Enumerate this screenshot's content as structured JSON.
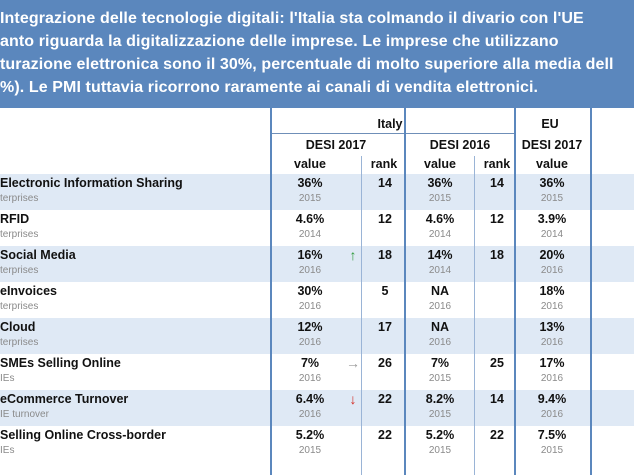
{
  "banner": {
    "lines": [
      "Integrazione delle tecnologie digitali: l'Italia sta colmando il divario con l'UE",
      "anto riguarda la digitalizzazione delle imprese. Le imprese che utilizzano",
      "turazione elettronica sono il 30%, percentuale di molto superiore alla media dell",
      "%). Le PMI tuttavia ricorrono raramente ai canali di vendita elettronici."
    ]
  },
  "table": {
    "group_italy": "Italy",
    "group_eu": "EU",
    "desi2017": "DESI 2017",
    "desi2016": "DESI 2016",
    "eu_desi2017": "DESI 2017",
    "value": "value",
    "rank": "rank",
    "rows": [
      {
        "name": "Electronic Information Sharing",
        "sub": "terprises",
        "v17": "36%",
        "y17": "2015",
        "arrow": "",
        "arrow_color": "",
        "r17": "14",
        "v16": "36%",
        "y16": "2015",
        "r16": "14",
        "eu": "36%",
        "yeu": "2015"
      },
      {
        "name": "RFID",
        "sub": "terprises",
        "v17": "4.6%",
        "y17": "2014",
        "arrow": "",
        "arrow_color": "",
        "r17": "12",
        "v16": "4.6%",
        "y16": "2014",
        "r16": "12",
        "eu": "3.9%",
        "yeu": "2014"
      },
      {
        "name": "Social Media",
        "sub": "terprises",
        "v17": "16%",
        "y17": "2016",
        "arrow": "↑",
        "arrow_color": "#2e9a3a",
        "r17": "18",
        "v16": "14%",
        "y16": "2014",
        "r16": "18",
        "eu": "20%",
        "yeu": "2016"
      },
      {
        "name": "eInvoices",
        "sub": "terprises",
        "v17": "30%",
        "y17": "2016",
        "arrow": "",
        "arrow_color": "",
        "r17": "5",
        "v16": "NA",
        "y16": "2016",
        "r16": "",
        "eu": "18%",
        "yeu": "2016"
      },
      {
        "name": "Cloud",
        "sub": "terprises",
        "v17": "12%",
        "y17": "2016",
        "arrow": "",
        "arrow_color": "",
        "r17": "17",
        "v16": "NA",
        "y16": "2016",
        "r16": "",
        "eu": "13%",
        "yeu": "2016"
      },
      {
        "name": "SMEs Selling Online",
        "sub": "IEs",
        "v17": "7%",
        "y17": "2016",
        "arrow": "→",
        "arrow_color": "#999999",
        "r17": "26",
        "v16": "7%",
        "y16": "2015",
        "r16": "25",
        "eu": "17%",
        "yeu": "2016"
      },
      {
        "name": "eCommerce Turnover",
        "sub": "IE turnover",
        "v17": "6.4%",
        "y17": "2016",
        "arrow": "↓",
        "arrow_color": "#d42a20",
        "r17": "22",
        "v16": "8.2%",
        "y16": "2015",
        "r16": "14",
        "eu": "9.4%",
        "yeu": "2016"
      },
      {
        "name": "Selling Online Cross-border",
        "sub": "IEs",
        "v17": "5.2%",
        "y17": "2015",
        "arrow": "",
        "arrow_color": "",
        "r17": "22",
        "v16": "5.2%",
        "y16": "2015",
        "r16": "22",
        "eu": "7.5%",
        "yeu": "2015"
      }
    ]
  }
}
